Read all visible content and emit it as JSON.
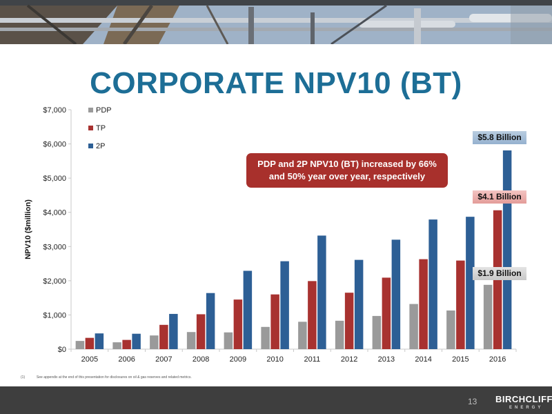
{
  "slide": {
    "title": "CORPORATE NPV10 (BT)",
    "callout": "PDP and 2P NPV10 (BT) increased by 66% and 50% year over year, respectively",
    "footnote_mark": "(1)",
    "footnote": "See appendix at the end of this presentation for disclosures on oil & gas reserves and related metrics.",
    "page_number": "13",
    "logo_main": "BIRCHCLIFF",
    "logo_sub": "ENERGY"
  },
  "value_labels": {
    "two_p": "$5.8 Billion",
    "tp": "$4.1 Billion",
    "pdp": "$1.9 Billion"
  },
  "colors": {
    "title": "#1d6e96",
    "pdp": "#9a9a9a",
    "tp": "#a83230",
    "two_p": "#2d5f95",
    "callout": "#a8302c",
    "footer": "#3e3e3e"
  },
  "chart_data": {
    "type": "bar",
    "title": "",
    "xlabel": "",
    "ylabel": "NPV10 ($million)",
    "ylim": [
      0,
      7000
    ],
    "yticks": [
      0,
      1000,
      2000,
      3000,
      4000,
      5000,
      6000,
      7000
    ],
    "ytick_labels": [
      "$0",
      "$1,000",
      "$2,000",
      "$3,000",
      "$4,000",
      "$5,000",
      "$6,000",
      "$7,000"
    ],
    "categories": [
      "2005",
      "2006",
      "2007",
      "2008",
      "2009",
      "2010",
      "2011",
      "2012",
      "2013",
      "2014",
      "2015",
      "2016"
    ],
    "legend_position": "top-left",
    "grid": false,
    "series": [
      {
        "name": "PDP",
        "color": "#9a9a9a",
        "values": [
          240,
          200,
          400,
          500,
          490,
          650,
          800,
          830,
          970,
          1320,
          1130,
          1880
        ]
      },
      {
        "name": "TP",
        "color": "#a83230",
        "values": [
          330,
          270,
          710,
          1020,
          1450,
          1600,
          1990,
          1650,
          2090,
          2630,
          2590,
          4060
        ]
      },
      {
        "name": "2P",
        "color": "#2d5f95",
        "values": [
          460,
          450,
          1030,
          1640,
          2290,
          2570,
          3320,
          2610,
          3200,
          3790,
          3870,
          5810
        ]
      }
    ]
  }
}
